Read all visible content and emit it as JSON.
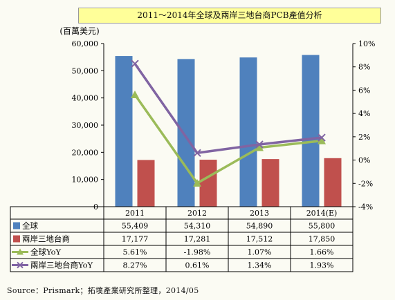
{
  "chart_data": {
    "type": "bar",
    "title": "2011～2014年全球及兩岸三地台商PCB產值分析",
    "unit_label": "(百萬美元)",
    "categories": [
      "2011",
      "2012",
      "2013",
      "2014(E)"
    ],
    "ylim": [
      0,
      60000
    ],
    "y_ticks": [
      "0",
      "10,000",
      "20,000",
      "30,000",
      "40,000",
      "50,000",
      "60,000"
    ],
    "y2lim": [
      -4,
      10
    ],
    "y2_ticks": [
      "-4%",
      "-2%",
      "0%",
      "2%",
      "4%",
      "6%",
      "8%",
      "10%"
    ],
    "series": [
      {
        "name": "全球",
        "kind": "bar",
        "axis": "left",
        "color": "#4f81bd",
        "values": [
          55409,
          54310,
          54890,
          55800
        ],
        "labels": [
          "55,409",
          "54,310",
          "54,890",
          "55,800"
        ]
      },
      {
        "name": "兩岸三地台商",
        "kind": "bar",
        "axis": "left",
        "color": "#c0504d",
        "values": [
          17177,
          17281,
          17512,
          17850
        ],
        "labels": [
          "17,177",
          "17,281",
          "17,512",
          "17,850"
        ]
      },
      {
        "name": "全球YoY",
        "kind": "line",
        "axis": "right",
        "color": "#9bbb59",
        "marker": "triangle",
        "values": [
          5.61,
          -1.98,
          1.07,
          1.66
        ],
        "labels": [
          "5.61%",
          "-1.98%",
          "1.07%",
          "1.66%"
        ]
      },
      {
        "name": "兩岸三地台商YoY",
        "kind": "line",
        "axis": "right",
        "color": "#8064a2",
        "marker": "x",
        "values": [
          8.27,
          0.61,
          1.34,
          1.93
        ],
        "labels": [
          "8.27%",
          "0.61%",
          "1.34%",
          "1.93%"
        ]
      }
    ],
    "grid": false,
    "legend": "table-below"
  },
  "source": "Source：Prismark；拓墣產業研究所整理，2014/05"
}
